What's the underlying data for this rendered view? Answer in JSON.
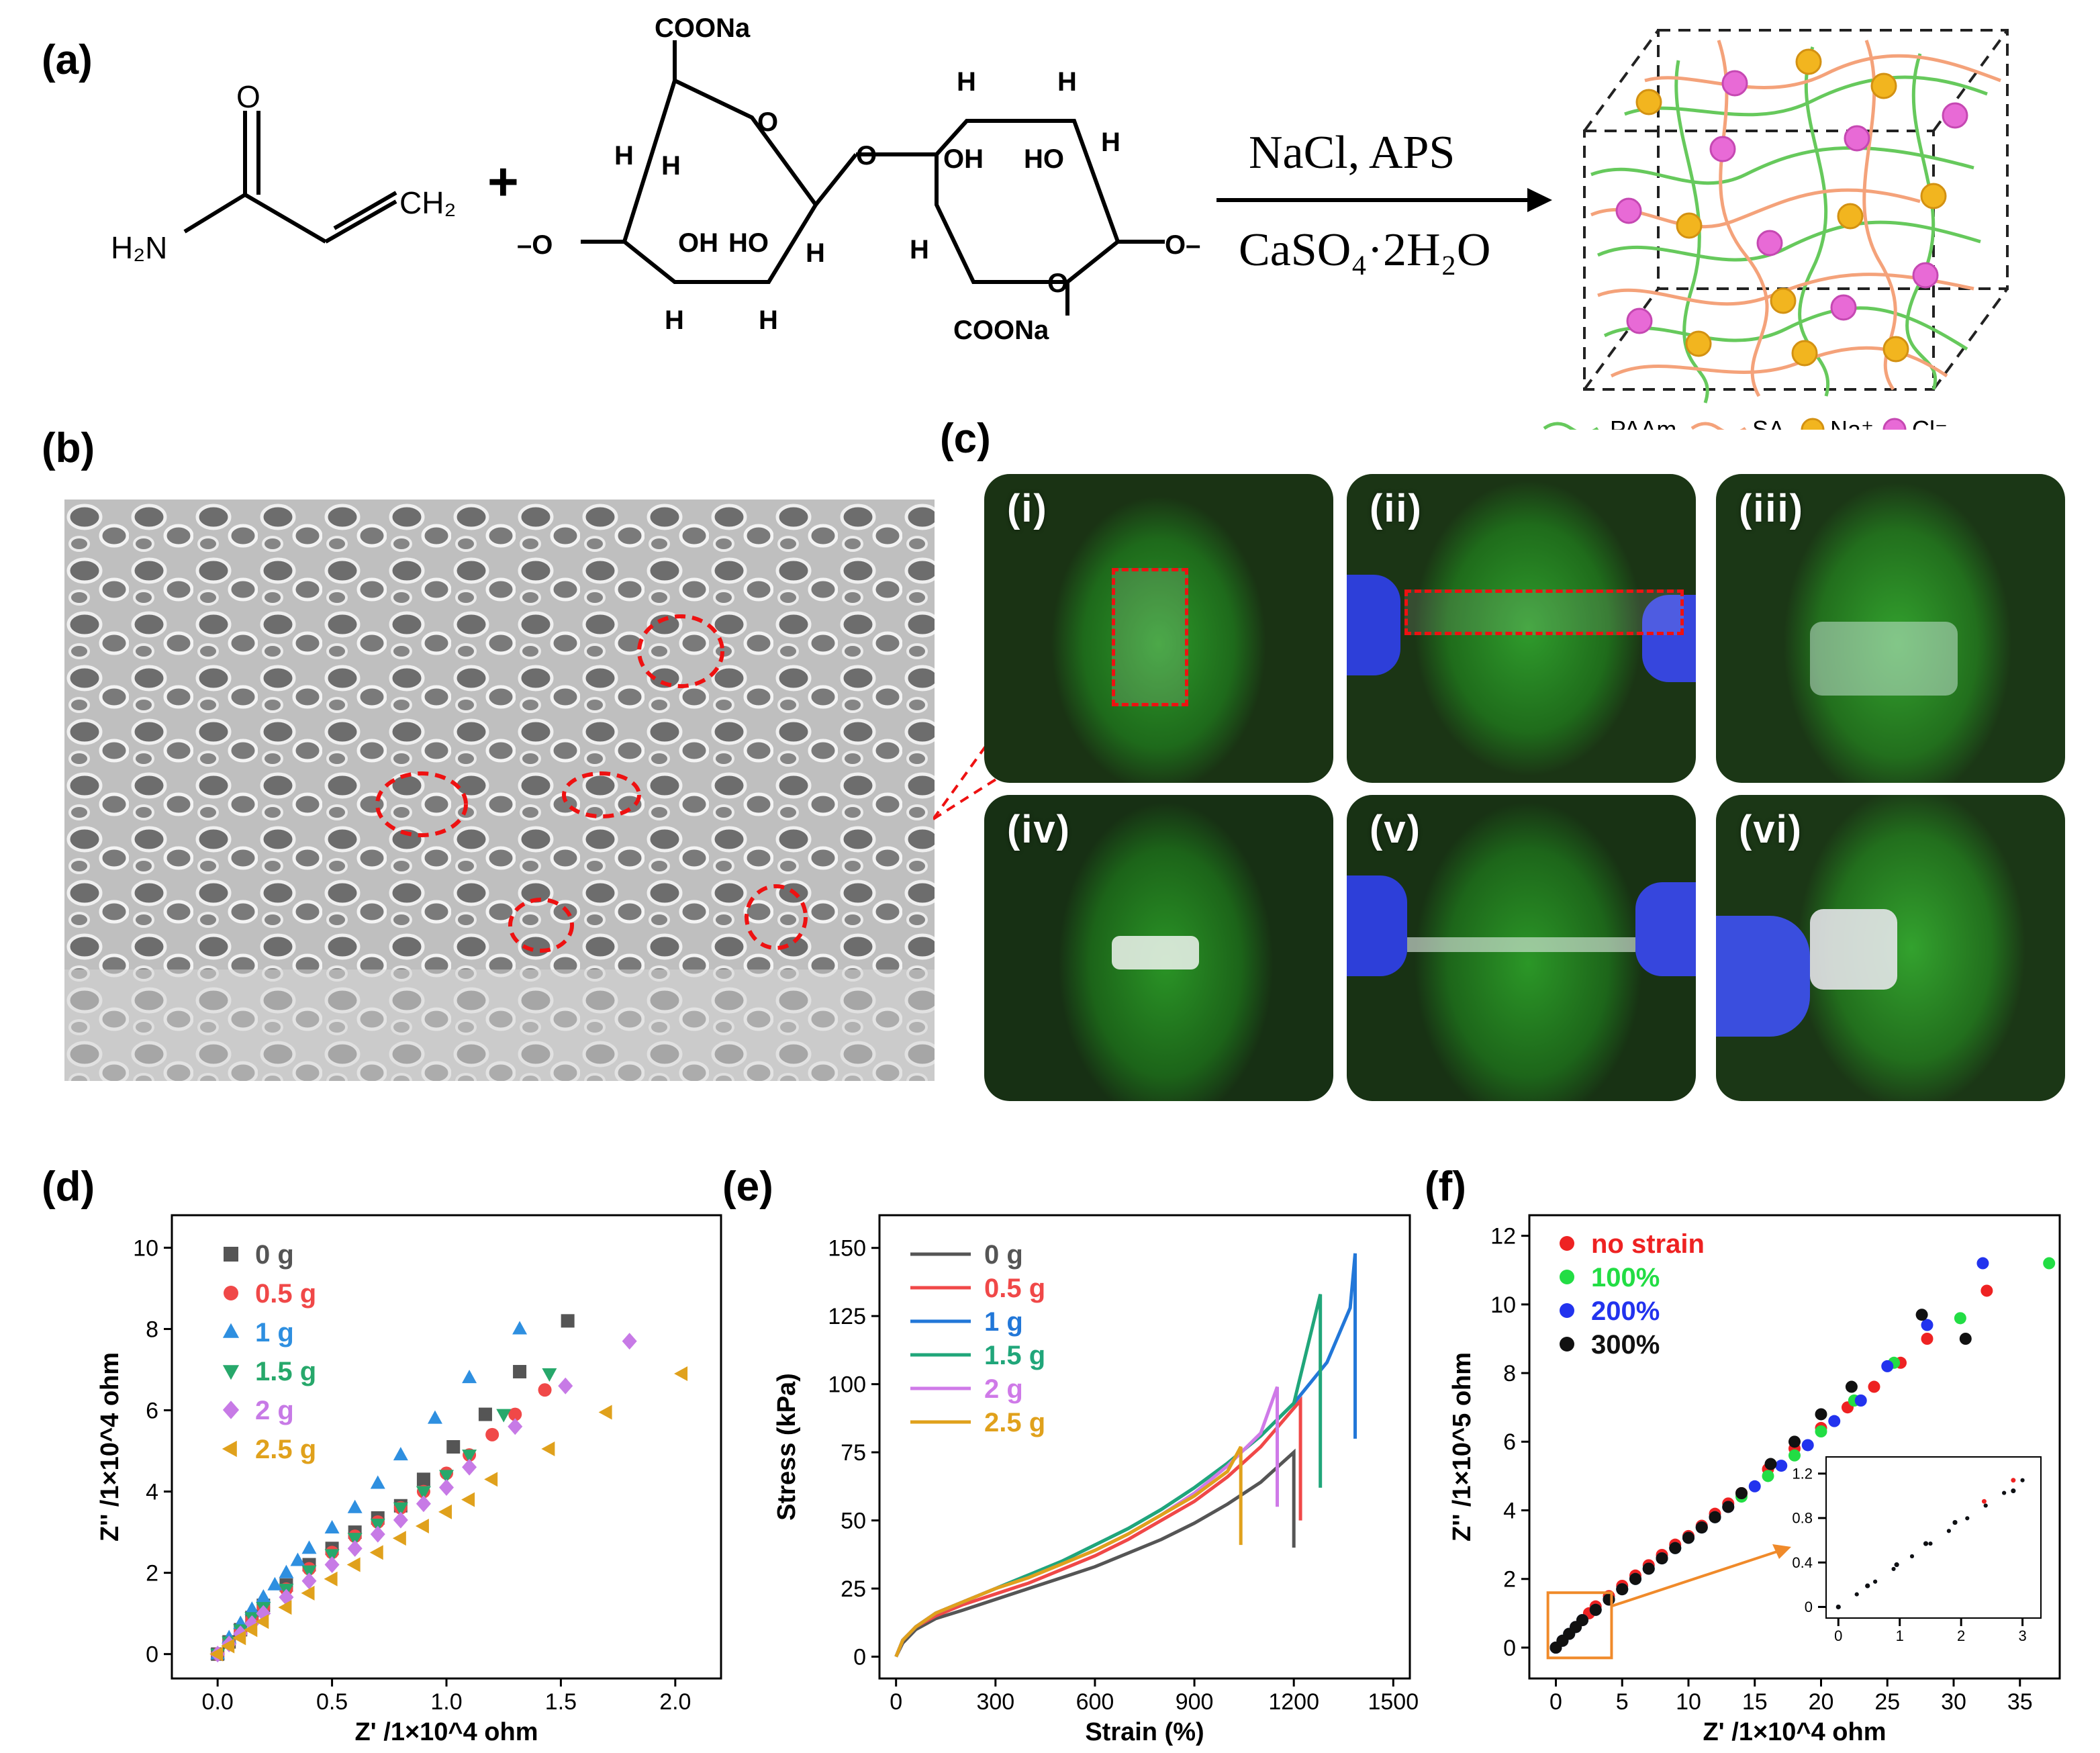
{
  "panels": {
    "a": {
      "label": "(a)",
      "monomer": {
        "o": "O",
        "ch2": "CH₂",
        "h2n": "H₂N"
      },
      "plus": "+",
      "sa": {
        "coona": "COONa",
        "o": "O",
        "h": "H",
        "oh": "OH",
        "ho": "HO",
        "left_link": "–O",
        "right_link": "O–"
      },
      "reagents_top": "NaCl, APS",
      "reagents_bottom": "CaSO₄·2H₂O",
      "legend": [
        {
          "label": "PAAm",
          "color": "#66c95c"
        },
        {
          "label": "SA",
          "color": "#f4a27a"
        },
        {
          "label": "Na⁺",
          "color": "#f2b51f"
        },
        {
          "label": "Cl⁻",
          "color": "#e86ad6"
        }
      ]
    },
    "b": {
      "label": "(b)"
    },
    "c": {
      "label": "(c)",
      "photos": [
        "(i)",
        "(ii)",
        "(iii)",
        "(iv)",
        "(v)",
        "(vi)"
      ]
    },
    "d": {
      "label": "(d)"
    },
    "e": {
      "label": "(e)"
    },
    "f": {
      "label": "(f)"
    }
  },
  "chart_data": [
    {
      "id": "d",
      "type": "scatter",
      "xlabel": "Z' /1×10^4 ohm",
      "ylabel": "Z'' /1×10^4 ohm",
      "xlim": [
        -0.2,
        2.2
      ],
      "ylim": [
        -0.6,
        10.8
      ],
      "xticks": [
        "0.0",
        "0.5",
        "1.0",
        "1.5",
        "2.0"
      ],
      "yticks": [
        "0",
        "2",
        "4",
        "6",
        "8",
        "10"
      ],
      "legend_position": "top-left",
      "series": [
        {
          "name": "0 g",
          "color": "#555555",
          "marker": "square",
          "x": [
            0,
            0.05,
            0.1,
            0.15,
            0.2,
            0.3,
            0.4,
            0.5,
            0.6,
            0.7,
            0.8,
            0.9,
            1.03,
            1.17,
            1.32,
            1.53
          ],
          "y": [
            0,
            0.3,
            0.6,
            0.9,
            1.2,
            1.7,
            2.2,
            2.6,
            3.0,
            3.35,
            3.65,
            4.3,
            5.1,
            5.9,
            6.95,
            8.2
          ]
        },
        {
          "name": "0.5 g",
          "color": "#f04848",
          "marker": "circle",
          "x": [
            0,
            0.05,
            0.1,
            0.15,
            0.2,
            0.3,
            0.4,
            0.5,
            0.6,
            0.7,
            0.8,
            0.9,
            1.0,
            1.1,
            1.2,
            1.3,
            1.43
          ],
          "y": [
            0,
            0.3,
            0.55,
            0.85,
            1.15,
            1.6,
            2.1,
            2.5,
            2.9,
            3.25,
            3.6,
            4.0,
            4.45,
            4.9,
            5.4,
            5.9,
            6.5
          ]
        },
        {
          "name": "1 g",
          "color": "#2e8fe0",
          "marker": "triangle-up",
          "x": [
            0,
            0.05,
            0.1,
            0.15,
            0.2,
            0.25,
            0.3,
            0.35,
            0.4,
            0.5,
            0.6,
            0.7,
            0.8,
            0.95,
            1.1,
            1.32
          ],
          "y": [
            0,
            0.4,
            0.75,
            1.1,
            1.4,
            1.7,
            2.0,
            2.3,
            2.6,
            3.1,
            3.6,
            4.2,
            4.9,
            5.8,
            6.8,
            8.0
          ]
        },
        {
          "name": "1.5 g",
          "color": "#27a86b",
          "marker": "triangle-down",
          "x": [
            0,
            0.05,
            0.1,
            0.15,
            0.2,
            0.3,
            0.4,
            0.5,
            0.6,
            0.7,
            0.8,
            0.9,
            1.0,
            1.1,
            1.25,
            1.45
          ],
          "y": [
            0,
            0.3,
            0.6,
            0.9,
            1.15,
            1.6,
            2.05,
            2.45,
            2.85,
            3.2,
            3.6,
            4.0,
            4.4,
            4.9,
            5.9,
            6.9
          ]
        },
        {
          "name": "2 g",
          "color": "#c77ae6",
          "marker": "diamond",
          "x": [
            0,
            0.05,
            0.1,
            0.15,
            0.2,
            0.3,
            0.4,
            0.5,
            0.6,
            0.7,
            0.8,
            0.9,
            1.0,
            1.1,
            1.3,
            1.52,
            1.8
          ],
          "y": [
            0,
            0.25,
            0.5,
            0.75,
            1.0,
            1.4,
            1.8,
            2.2,
            2.6,
            2.95,
            3.3,
            3.7,
            4.1,
            4.6,
            5.6,
            6.6,
            7.7
          ]
        },
        {
          "name": "2.5 g",
          "color": "#e0a11c",
          "marker": "triangle-left",
          "x": [
            0,
            0.05,
            0.1,
            0.15,
            0.2,
            0.3,
            0.4,
            0.5,
            0.6,
            0.7,
            0.8,
            0.9,
            1.0,
            1.1,
            1.2,
            1.45,
            1.7,
            2.03
          ],
          "y": [
            0,
            0.2,
            0.4,
            0.6,
            0.8,
            1.15,
            1.5,
            1.85,
            2.2,
            2.5,
            2.85,
            3.15,
            3.5,
            3.8,
            4.3,
            5.05,
            5.95,
            6.9
          ]
        }
      ]
    },
    {
      "id": "e",
      "type": "line",
      "xlabel": "Strain (%)",
      "ylabel": "Stress (kPa)",
      "xlim": [
        -50,
        1550
      ],
      "ylim": [
        -8,
        162
      ],
      "xticks": [
        "0",
        "300",
        "600",
        "900",
        "1200",
        "1500"
      ],
      "yticks": [
        "0",
        "25",
        "50",
        "75",
        "100",
        "125",
        "150"
      ],
      "legend_position": "top-left",
      "series": [
        {
          "name": "0 g",
          "color": "#555555",
          "x": [
            0,
            20,
            60,
            120,
            200,
            300,
            400,
            500,
            600,
            700,
            800,
            900,
            1000,
            1100,
            1200,
            1200
          ],
          "y": [
            0,
            5,
            10,
            14,
            17,
            21,
            25,
            29,
            33,
            38,
            43,
            49,
            56,
            64,
            75,
            40
          ]
        },
        {
          "name": "0.5 g",
          "color": "#f04848",
          "x": [
            0,
            20,
            60,
            120,
            200,
            300,
            400,
            500,
            600,
            700,
            800,
            900,
            1000,
            1100,
            1220,
            1220
          ],
          "y": [
            0,
            6,
            11,
            15,
            19,
            23,
            27,
            32,
            37,
            43,
            50,
            57,
            66,
            77,
            94,
            50
          ]
        },
        {
          "name": "1 g",
          "color": "#2277d8",
          "x": [
            0,
            20,
            60,
            120,
            200,
            300,
            400,
            500,
            600,
            700,
            800,
            900,
            1000,
            1100,
            1200,
            1300,
            1370,
            1385,
            1385
          ],
          "y": [
            0,
            6,
            11,
            16,
            20,
            25,
            30,
            35,
            41,
            47,
            54,
            62,
            71,
            81,
            93,
            108,
            128,
            148,
            80
          ]
        },
        {
          "name": "1.5 g",
          "color": "#20a67a",
          "x": [
            0,
            20,
            60,
            120,
            200,
            300,
            400,
            500,
            600,
            700,
            800,
            900,
            1000,
            1100,
            1200,
            1280,
            1280
          ],
          "y": [
            0,
            6,
            11,
            16,
            20,
            25,
            30,
            35,
            41,
            47,
            54,
            62,
            71,
            81,
            93,
            133,
            62
          ]
        },
        {
          "name": "2 g",
          "color": "#cf7ae8",
          "x": [
            0,
            20,
            60,
            120,
            200,
            300,
            400,
            500,
            600,
            700,
            800,
            900,
            1000,
            1100,
            1150,
            1150
          ],
          "y": [
            0,
            6,
            11,
            16,
            20,
            25,
            29,
            34,
            39,
            45,
            52,
            60,
            70,
            82,
            99,
            55
          ]
        },
        {
          "name": "2.5 g",
          "color": "#e0a11c",
          "x": [
            0,
            20,
            60,
            120,
            200,
            300,
            400,
            500,
            600,
            700,
            800,
            900,
            1000,
            1040,
            1040
          ],
          "y": [
            0,
            6,
            11,
            16,
            20,
            25,
            29,
            34,
            39,
            45,
            52,
            59,
            68,
            77,
            41
          ]
        }
      ]
    },
    {
      "id": "f",
      "type": "scatter",
      "xlabel": "Z' /1×10^4 ohm",
      "ylabel": "Z'' /1×10^5 ohm",
      "xlim": [
        -2,
        38
      ],
      "ylim": [
        -0.9,
        12.6
      ],
      "xticks": [
        "0",
        "5",
        "10",
        "15",
        "20",
        "25",
        "30",
        "35"
      ],
      "yticks": [
        "0",
        "2",
        "4",
        "6",
        "8",
        "10",
        "12"
      ],
      "legend_position": "top-left",
      "series": [
        {
          "name": "no strain",
          "color": "#ee2222",
          "x": [
            0,
            0.5,
            1,
            1.5,
            2,
            2.5,
            3,
            4,
            5,
            6,
            7,
            8,
            9,
            10,
            11,
            12,
            13,
            14,
            16,
            18,
            20,
            22,
            24,
            26,
            28,
            32.5
          ],
          "y": [
            0,
            0.2,
            0.4,
            0.6,
            0.8,
            1.0,
            1.2,
            1.5,
            1.8,
            2.1,
            2.4,
            2.7,
            3.0,
            3.25,
            3.55,
            3.9,
            4.2,
            4.5,
            5.2,
            5.8,
            6.4,
            7.0,
            7.6,
            8.3,
            9.0,
            10.4
          ]
        },
        {
          "name": "100%",
          "color": "#22dd44",
          "x": [
            0,
            0.5,
            1,
            1.5,
            2,
            3,
            4,
            5,
            6,
            7,
            8,
            9,
            10,
            11,
            12,
            14,
            16,
            18,
            20,
            22.5,
            25.5,
            30.5,
            37.2
          ],
          "y": [
            0,
            0.2,
            0.4,
            0.6,
            0.8,
            1.1,
            1.4,
            1.7,
            2.0,
            2.3,
            2.6,
            2.9,
            3.2,
            3.5,
            3.8,
            4.4,
            5.0,
            5.6,
            6.3,
            7.2,
            8.3,
            9.6,
            11.2
          ]
        },
        {
          "name": "200%",
          "color": "#2233ee",
          "x": [
            0,
            0.5,
            1,
            1.5,
            2,
            3,
            4,
            5,
            6,
            7,
            8,
            9,
            10,
            11,
            12,
            13,
            15,
            17,
            19,
            21,
            23,
            25,
            28,
            32.2
          ],
          "y": [
            0,
            0.2,
            0.4,
            0.6,
            0.8,
            1.1,
            1.4,
            1.7,
            2.0,
            2.3,
            2.6,
            2.9,
            3.2,
            3.5,
            3.8,
            4.1,
            4.7,
            5.3,
            5.9,
            6.6,
            7.2,
            8.2,
            9.4,
            11.2
          ]
        },
        {
          "name": "300%",
          "color": "#111111",
          "x": [
            0,
            0.5,
            1,
            1.5,
            2,
            3,
            4,
            5,
            6,
            7,
            8,
            9,
            10,
            11,
            12,
            13,
            14,
            16.2,
            18,
            20,
            22.3,
            27.6,
            30.9
          ],
          "y": [
            0,
            0.2,
            0.4,
            0.6,
            0.8,
            1.1,
            1.4,
            1.7,
            2.0,
            2.3,
            2.6,
            2.9,
            3.2,
            3.5,
            3.8,
            4.1,
            4.5,
            5.35,
            6.0,
            6.8,
            7.6,
            9.7,
            9.0
          ]
        }
      ],
      "inset": {
        "xlim": [
          -0.2,
          3.3
        ],
        "ylim": [
          -0.1,
          1.35
        ],
        "xticks": [
          "0",
          "1",
          "2",
          "3"
        ],
        "yticks": [
          "0",
          "0.4",
          "0.8",
          "1.2"
        ]
      }
    }
  ]
}
